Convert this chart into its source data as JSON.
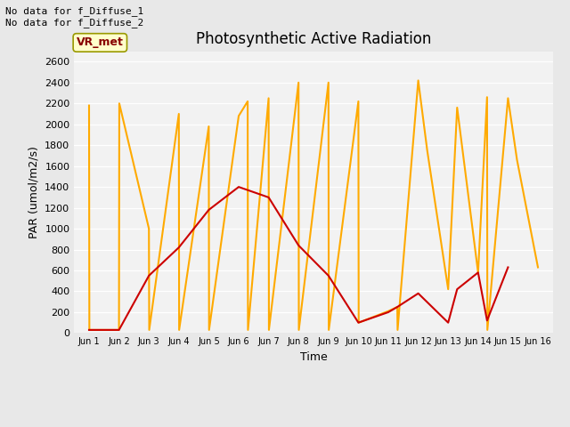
{
  "title": "Photosynthetic Active Radiation",
  "xlabel": "Time",
  "ylabel": "PAR (umol/m2/s)",
  "ylim": [
    0,
    2700
  ],
  "yticks": [
    0,
    200,
    400,
    600,
    800,
    1000,
    1200,
    1400,
    1600,
    1800,
    2000,
    2200,
    2400,
    2600
  ],
  "background_color": "#e8e8e8",
  "plot_bg_color": "#f2f2f2",
  "annotation_top_left": "No data for f_Diffuse_1\nNo data for f_Diffuse_2",
  "legend_label_box": "VR_met",
  "legend_box_color": "#ffffcc",
  "legend_box_edge_color": "#999900",
  "legend_box_text_color": "#880000",
  "par_in_color": "#cc0000",
  "par_out_color": "#ffaa00",
  "x_tick_labels": [
    "Jun 1",
    "Jun 2",
    "Jun 3",
    "Jun 4",
    "Jun 5",
    "Jun 6",
    "Jun 7",
    "Jun 8",
    "Jun 9",
    "Jun 10",
    "Jun 11",
    "Jun 12",
    "Jun 13",
    "Jun 14",
    "Jun 15",
    "Jun 16"
  ],
  "x_positions": [
    1,
    2,
    3,
    4,
    5,
    6,
    7,
    8,
    9,
    10,
    11,
    12,
    13,
    14,
    15,
    16
  ],
  "par_out_x": [
    1.0,
    1.01,
    2.0,
    2.01,
    3.0,
    3.01,
    4.0,
    4.01,
    5.0,
    5.01,
    6.0,
    6.3,
    6.31,
    7.0,
    7.01,
    8.0,
    8.01,
    9.0,
    9.01,
    10.0,
    10.01,
    11.0,
    11.3,
    11.31,
    12.0,
    12.3,
    13.0,
    13.3,
    14.0,
    14.3,
    14.31,
    15.0,
    15.3,
    16.0
  ],
  "par_out_y": [
    2180,
    30,
    30,
    2200,
    1000,
    30,
    2100,
    30,
    1980,
    30,
    2080,
    2220,
    30,
    2250,
    30,
    2400,
    30,
    2400,
    30,
    2220,
    100,
    210,
    250,
    30,
    2420,
    1750,
    420,
    2160,
    580,
    2260,
    30,
    2250,
    1660,
    630
  ],
  "par_in_x": [
    1,
    2,
    3,
    4,
    5,
    6,
    7,
    8,
    9,
    10,
    11.0,
    11.3,
    12,
    13.0,
    13.3,
    14.0,
    14.3,
    15
  ],
  "par_in_y": [
    30,
    30,
    550,
    820,
    1180,
    1400,
    1300,
    840,
    550,
    100,
    200,
    250,
    380,
    100,
    420,
    580,
    120,
    630
  ]
}
